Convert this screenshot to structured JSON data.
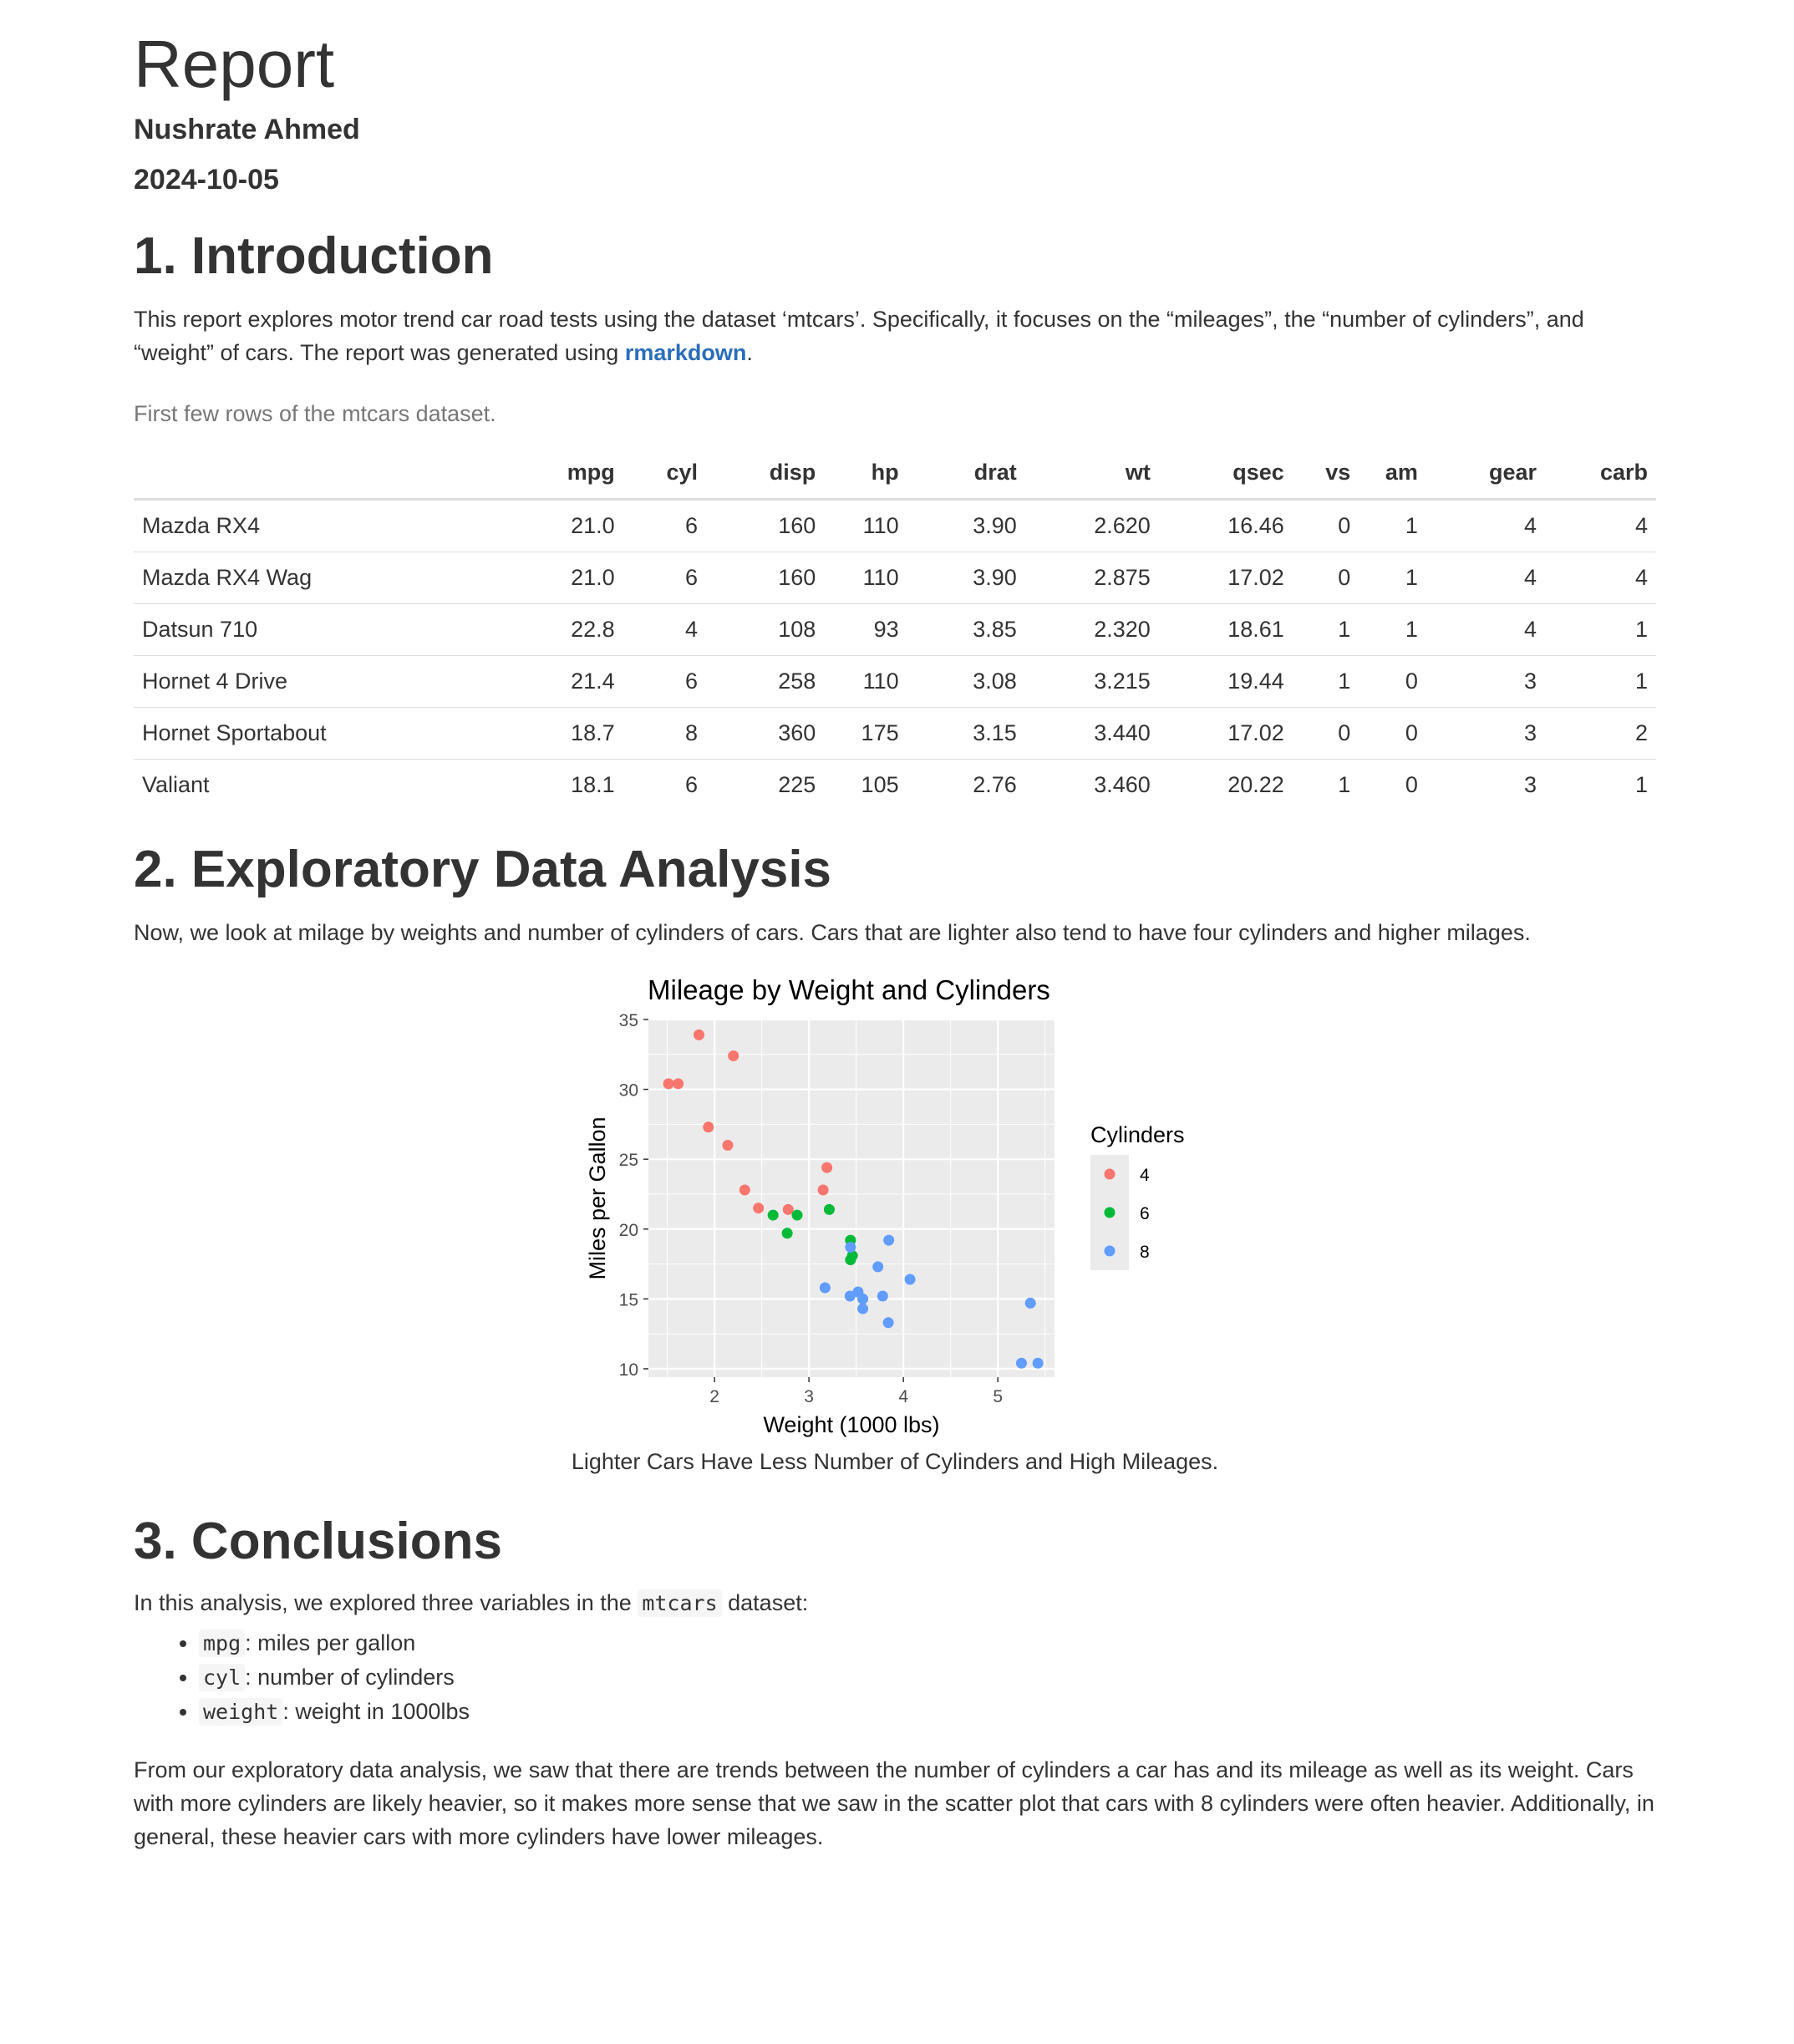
{
  "header": {
    "title": "Report",
    "author": "Nushrate Ahmed",
    "date": "2024-10-05"
  },
  "intro": {
    "heading": "1. Introduction",
    "text_before_link": "This report explores motor trend car road tests using the dataset ‘mtcars’. Specifically, it focuses on the “mileages”, the “number of cylinders”, and “weight” of cars. The report was generated using ",
    "link_text": "rmarkdown",
    "text_after_link": "."
  },
  "table": {
    "caption": "First few rows of the mtcars dataset.",
    "columns": [
      "",
      "mpg",
      "cyl",
      "disp",
      "hp",
      "drat",
      "wt",
      "qsec",
      "vs",
      "am",
      "gear",
      "carb"
    ],
    "rows": [
      [
        "Mazda RX4",
        "21.0",
        "6",
        "160",
        "110",
        "3.90",
        "2.620",
        "16.46",
        "0",
        "1",
        "4",
        "4"
      ],
      [
        "Mazda RX4 Wag",
        "21.0",
        "6",
        "160",
        "110",
        "3.90",
        "2.875",
        "17.02",
        "0",
        "1",
        "4",
        "4"
      ],
      [
        "Datsun 710",
        "22.8",
        "4",
        "108",
        "93",
        "3.85",
        "2.320",
        "18.61",
        "1",
        "1",
        "4",
        "1"
      ],
      [
        "Hornet 4 Drive",
        "21.4",
        "6",
        "258",
        "110",
        "3.08",
        "3.215",
        "19.44",
        "1",
        "0",
        "3",
        "1"
      ],
      [
        "Hornet Sportabout",
        "18.7",
        "8",
        "360",
        "175",
        "3.15",
        "3.440",
        "17.02",
        "0",
        "0",
        "3",
        "2"
      ],
      [
        "Valiant",
        "18.1",
        "6",
        "225",
        "105",
        "2.76",
        "3.460",
        "20.22",
        "1",
        "0",
        "3",
        "1"
      ]
    ]
  },
  "eda": {
    "heading": "2. Exploratory Data Analysis",
    "text": "Now, we look at milage by weights and number of cylinders of cars. Cars that are lighter also tend to have four cylinders and higher milages.",
    "figure_caption": "Lighter Cars Have Less Number of Cylinders and High Mileages."
  },
  "chart_data": {
    "type": "scatter",
    "title": "Mileage by Weight and Cylinders",
    "xlabel": "Weight (1000 lbs)",
    "ylabel": "Miles per Gallon",
    "xlim": [
      1.3,
      5.6
    ],
    "ylim": [
      9.4,
      35.0
    ],
    "xticks": [
      2,
      3,
      4,
      5
    ],
    "yticks": [
      10,
      15,
      20,
      25,
      30,
      35
    ],
    "grid": true,
    "legend_title": "Cylinders",
    "legend_position": "right",
    "series": [
      {
        "name": "4",
        "color": "#F8766D",
        "x": [
          2.32,
          3.19,
          3.15,
          2.2,
          1.615,
          1.835,
          2.465,
          1.935,
          2.14,
          1.513,
          2.78
        ],
        "y": [
          22.8,
          24.4,
          22.8,
          32.4,
          30.4,
          33.9,
          21.5,
          27.3,
          26.0,
          30.4,
          21.4
        ]
      },
      {
        "name": "6",
        "color": "#00BA38",
        "x": [
          2.62,
          2.875,
          3.215,
          3.46,
          3.44,
          3.44,
          2.77
        ],
        "y": [
          21.0,
          21.0,
          21.4,
          18.1,
          19.2,
          17.8,
          19.7
        ]
      },
      {
        "name": "8",
        "color": "#619CFF",
        "x": [
          3.44,
          3.57,
          4.07,
          3.73,
          3.78,
          5.25,
          5.424,
          5.345,
          3.52,
          3.435,
          3.84,
          3.845,
          3.17,
          3.57
        ],
        "y": [
          18.7,
          14.3,
          16.4,
          17.3,
          15.2,
          10.4,
          10.4,
          14.7,
          15.5,
          15.2,
          13.3,
          19.2,
          15.8,
          15.0
        ]
      }
    ]
  },
  "conclusions": {
    "heading": "3. Conclusions",
    "lead_before_code": "In this analysis, we explored three variables in the ",
    "lead_code": "mtcars",
    "lead_after_code": " dataset:",
    "vars": [
      {
        "code": "mpg",
        "desc": ": miles per gallon"
      },
      {
        "code": "cyl",
        "desc": ": number of cylinders"
      },
      {
        "code": "weight",
        "desc": ": weight in 1000lbs"
      }
    ],
    "paragraph": "From our exploratory data analysis, we saw that there are trends between the number of cylinders a car has and its mileage as well as its weight. Cars with more cylinders are likely heavier, so it makes more sense that we saw in the scatter plot that cars with 8 cylinders were often heavier. Additionally, in general, these heavier cars with more cylinders have lower mileages."
  }
}
